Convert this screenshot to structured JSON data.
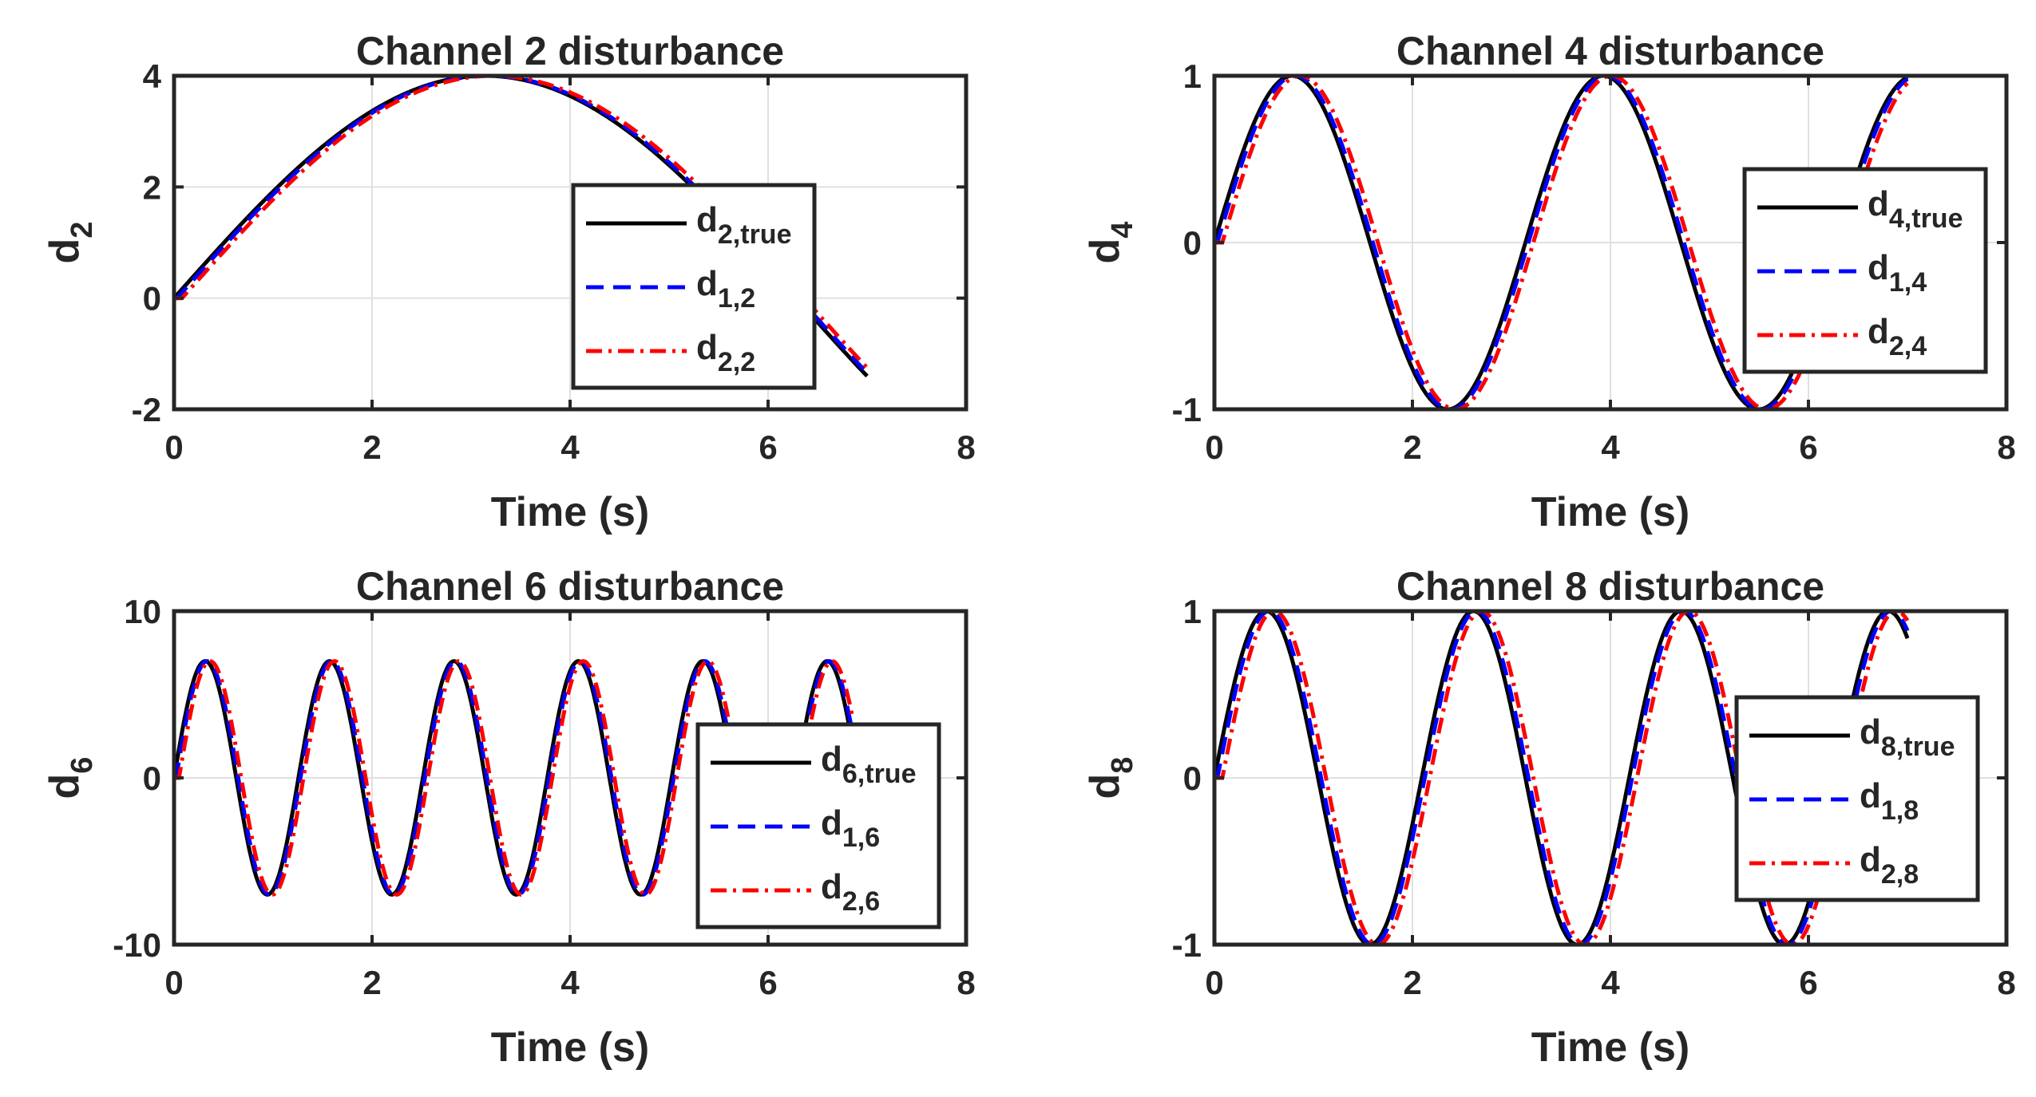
{
  "colors": {
    "true": "#000000",
    "est1": "#0000ff",
    "est2": "#ff0000",
    "axis": "#262626",
    "grid": "#e0e0e0"
  },
  "chart_data": [
    {
      "type": "line",
      "title": "Channel 2 disturbance",
      "xlabel": "Time (s)",
      "ylabel": {
        "base": "d",
        "sub": "2"
      },
      "xlim": [
        0,
        8
      ],
      "ylim": [
        -2,
        4
      ],
      "xticks": [
        0,
        2,
        4,
        6,
        8
      ],
      "yticks": [
        -2,
        0,
        2,
        4
      ],
      "xtick_labels": [
        "0",
        "2",
        "4",
        "6",
        "8"
      ],
      "ytick_labels": [
        "-2",
        "0",
        "2",
        "4"
      ],
      "grid": true,
      "legend_position": "east",
      "signal": {
        "amplitude": 4,
        "omega": 0.5,
        "t_end": 7,
        "est1_delay": 0.03,
        "est2_delay": 0.08
      },
      "series": [
        {
          "base": "d",
          "sub": "2,true",
          "style": "solid",
          "color": "true"
        },
        {
          "base": "d",
          "sub": "1,2",
          "style": "dashed",
          "color": "est1"
        },
        {
          "base": "d",
          "sub": "2,2",
          "style": "dashdot",
          "color": "est2"
        }
      ]
    },
    {
      "type": "line",
      "title": "Channel 4 disturbance",
      "xlabel": "Time (s)",
      "ylabel": {
        "base": "d",
        "sub": "4"
      },
      "xlim": [
        0,
        8
      ],
      "ylim": [
        -1,
        1
      ],
      "xticks": [
        0,
        2,
        4,
        6,
        8
      ],
      "yticks": [
        -1,
        0,
        1
      ],
      "xtick_labels": [
        "0",
        "2",
        "4",
        "6",
        "8"
      ],
      "ytick_labels": [
        "-1",
        "0",
        "1"
      ],
      "grid": true,
      "legend_position": "east",
      "signal": {
        "amplitude": 1,
        "omega": 2.0,
        "t_end": 7,
        "est1_delay": 0.03,
        "est2_delay": 0.08
      },
      "series": [
        {
          "base": "d",
          "sub": "4,true",
          "style": "solid",
          "color": "true"
        },
        {
          "base": "d",
          "sub": "1,4",
          "style": "dashed",
          "color": "est1"
        },
        {
          "base": "d",
          "sub": "2,4",
          "style": "dashdot",
          "color": "est2"
        }
      ]
    },
    {
      "type": "line",
      "title": "Channel 6 disturbance",
      "xlabel": "Time (s)",
      "ylabel": {
        "base": "d",
        "sub": "6"
      },
      "xlim": [
        0,
        8
      ],
      "ylim": [
        -10,
        10
      ],
      "xticks": [
        0,
        2,
        4,
        6,
        8
      ],
      "yticks": [
        -10,
        0,
        10
      ],
      "xtick_labels": [
        "0",
        "2",
        "4",
        "6",
        "8"
      ],
      "ytick_labels": [
        "-10",
        "0",
        "10"
      ],
      "grid": true,
      "legend_position": "southeast",
      "signal": {
        "amplitude": 7,
        "omega": 5.0,
        "t_end": 6.85,
        "est1_delay": 0.02,
        "est2_delay": 0.05
      },
      "series": [
        {
          "base": "d",
          "sub": "6,true",
          "style": "solid",
          "color": "true"
        },
        {
          "base": "d",
          "sub": "1,6",
          "style": "dashed",
          "color": "est1"
        },
        {
          "base": "d",
          "sub": "2,6",
          "style": "dashdot",
          "color": "est2"
        }
      ]
    },
    {
      "type": "line",
      "title": "Channel 8 disturbance",
      "xlabel": "Time (s)",
      "ylabel": {
        "base": "d",
        "sub": "8"
      },
      "xlim": [
        0,
        8
      ],
      "ylim": [
        -1,
        1
      ],
      "xticks": [
        0,
        2,
        4,
        6,
        8
      ],
      "yticks": [
        -1,
        0,
        1
      ],
      "xtick_labels": [
        "0",
        "2",
        "4",
        "6",
        "8"
      ],
      "ytick_labels": [
        "-1",
        "0",
        "1"
      ],
      "grid": true,
      "legend_position": "east",
      "signal": {
        "amplitude": 1,
        "omega": 3.0,
        "t_end": 7,
        "est1_delay": 0.03,
        "est2_delay": 0.08
      },
      "series": [
        {
          "base": "d",
          "sub": "8,true",
          "style": "solid",
          "color": "true"
        },
        {
          "base": "d",
          "sub": "1,8",
          "style": "dashed",
          "color": "est1"
        },
        {
          "base": "d",
          "sub": "2,8",
          "style": "dashdot",
          "color": "est2"
        }
      ]
    }
  ]
}
